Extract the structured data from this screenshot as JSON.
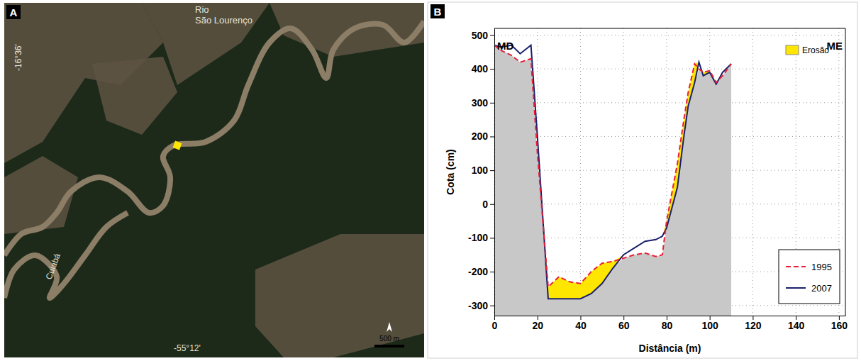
{
  "chart_data": {
    "type": "line",
    "x_label": "Distância (m)",
    "y_label": "Cota (cm)",
    "annotations": [
      {
        "text": "B"
      },
      {
        "text": "MD"
      },
      {
        "text": "ME"
      },
      {
        "text": "Erosão",
        "color": "#ffe600"
      }
    ],
    "x": [
      0,
      3,
      8,
      12,
      17,
      20,
      25,
      30,
      35,
      40,
      45,
      50,
      55,
      60,
      65,
      70,
      75,
      78,
      80,
      85,
      88,
      90,
      93,
      95,
      97,
      100,
      103,
      106,
      110
    ],
    "series": [
      {
        "name": "1995",
        "color": "#e8203a",
        "line_style": "dashed",
        "values": [
          470,
          455,
          440,
          420,
          430,
          150,
          -245,
          -215,
          -230,
          -235,
          -200,
          -175,
          -170,
          -160,
          -150,
          -145,
          -155,
          -150,
          -50,
          120,
          250,
          330,
          415,
          400,
          390,
          395,
          360,
          380,
          415
        ]
      },
      {
        "name": "2007",
        "color": "#1a1f6b",
        "line_style": "solid",
        "values": [
          470,
          465,
          470,
          445,
          470,
          200,
          -280,
          -280,
          -280,
          -280,
          -265,
          -235,
          -190,
          -150,
          -130,
          -110,
          -105,
          -95,
          -70,
          50,
          200,
          290,
          360,
          420,
          380,
          390,
          355,
          390,
          415
        ]
      }
    ],
    "xlim": [
      0,
      163
    ],
    "ylim": [
      -330,
      520
    ],
    "xticks": [
      0,
      20,
      40,
      60,
      80,
      100,
      120,
      140,
      160
    ],
    "yticks": [
      -300,
      -200,
      -100,
      0,
      100,
      200,
      300,
      400,
      500
    ],
    "grid": true,
    "legend": "lower right"
  },
  "map": {
    "panel_label": "A",
    "labels": [
      "Rio São Lourenço",
      "Cuiabá",
      "-16°36'",
      "-55°12'"
    ],
    "scale_bar": "500 m"
  }
}
